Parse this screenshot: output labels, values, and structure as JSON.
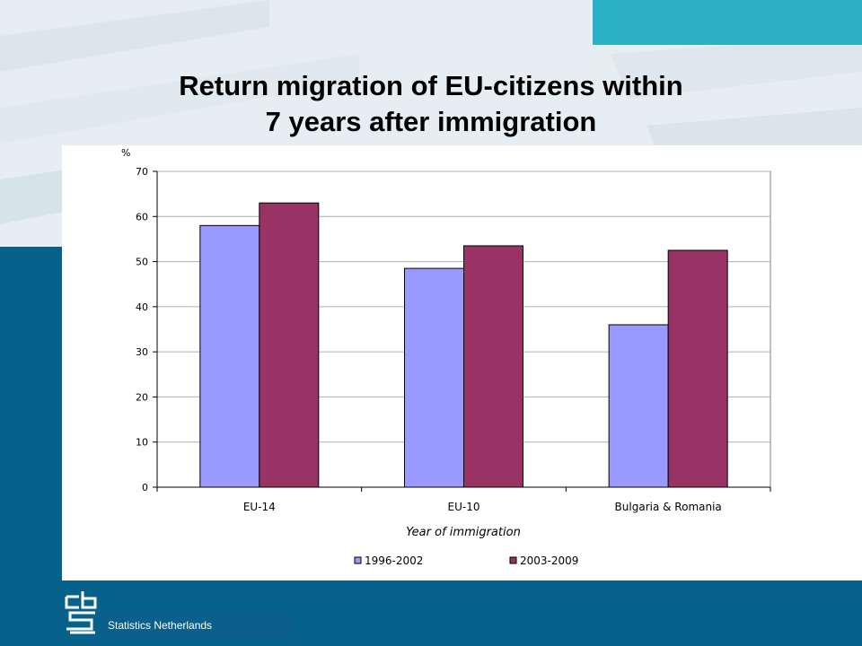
{
  "slide": {
    "title_line1": "Return migration of EU-citizens within",
    "title_line2": "7 years after immigration",
    "footer": "Statistics Netherlands",
    "colors": {
      "accent_teal": "#2bb0c8",
      "brand_blue": "#06628a"
    }
  },
  "chart_data": {
    "type": "bar",
    "categories": [
      "EU-14",
      "EU-10",
      "Bulgaria & Romania"
    ],
    "series": [
      {
        "name": "1996-2002",
        "values": [
          58,
          48.5,
          36
        ],
        "color": "#9999ff"
      },
      {
        "name": "2003-2009",
        "values": [
          63,
          53.5,
          52.5
        ],
        "color": "#993366"
      }
    ],
    "ylabel": "%",
    "xlabel": "Year of immigration",
    "ylim": [
      0,
      70
    ],
    "yticks": [
      "0",
      "10",
      "20",
      "30",
      "40",
      "50",
      "60",
      "70"
    ],
    "grid": true,
    "legend_position": "bottom"
  }
}
